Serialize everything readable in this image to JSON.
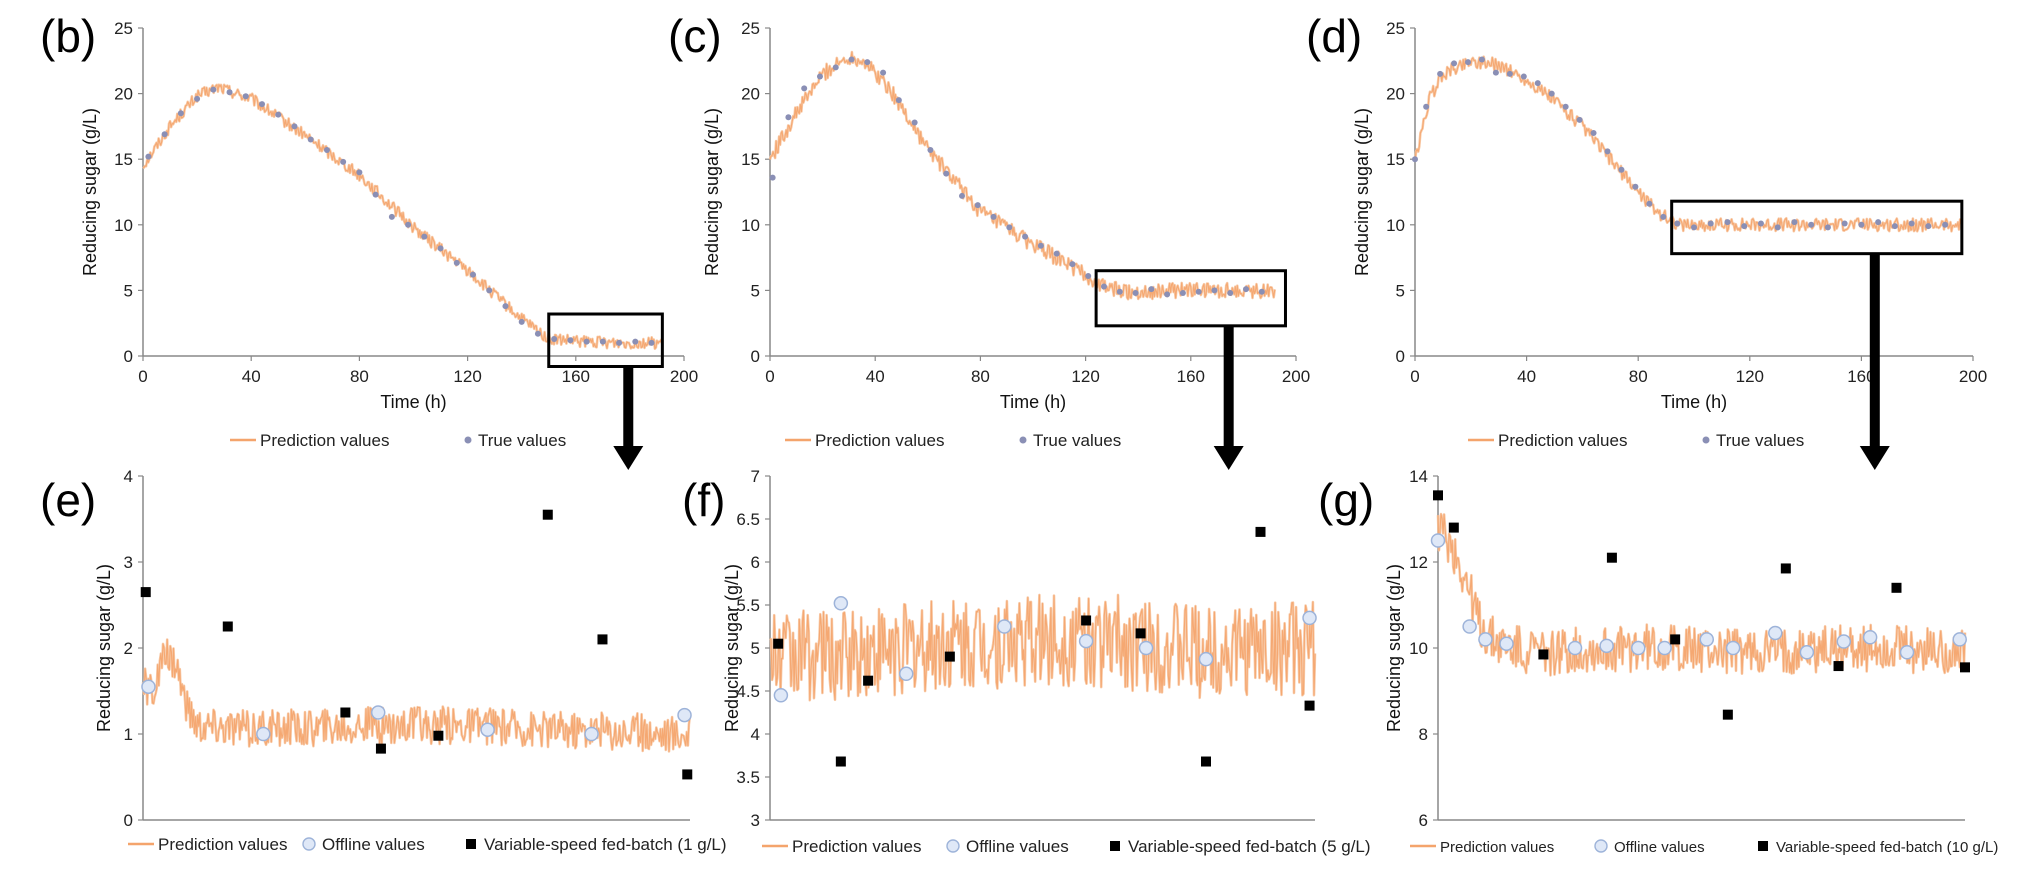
{
  "colors": {
    "prediction": "#f4a46c",
    "prediction_light": "#f7c7a2",
    "true_values": "#8a8fb5",
    "offline_fill": "#dfe8f7",
    "offline_stroke": "#9db3d9",
    "feed": "#000000",
    "axis": "#888888",
    "box": "#000000"
  },
  "chart_data": [
    {
      "id": "b",
      "type": "line",
      "panel_letter": "(b)",
      "xlabel": "Time (h)",
      "ylabel": "Reducing sugar (g/L)",
      "xlim": [
        0,
        200
      ],
      "ylim": [
        0,
        25
      ],
      "x_ticks": [
        "0",
        "40",
        "80",
        "120",
        "160",
        "200"
      ],
      "y_ticks": [
        "0",
        "5",
        "10",
        "15",
        "20",
        "25"
      ],
      "grid": false,
      "legend": [
        "Prediction values",
        "True values"
      ],
      "legend_position": "bottom",
      "highlight_box": {
        "x": [
          150,
          192
        ],
        "y": [
          -0.8,
          3.2
        ]
      },
      "series": [
        {
          "name": "Prediction values",
          "style": "line",
          "x": [
            0,
            10,
            20,
            28,
            40,
            60,
            80,
            100,
            120,
            140,
            150,
            160,
            180,
            192
          ],
          "values": [
            14.5,
            17.5,
            19.8,
            20.5,
            19.6,
            16.8,
            13.8,
            9.8,
            6.5,
            2.8,
            1.3,
            1.1,
            1.0,
            1.0
          ],
          "noise": 0.45
        },
        {
          "name": "True values",
          "style": "markers",
          "x": [
            2,
            8,
            14,
            20,
            26,
            32,
            38,
            44,
            50,
            56,
            62,
            68,
            74,
            80,
            86,
            92,
            98,
            104,
            110,
            116,
            122,
            128,
            134,
            140,
            146,
            152,
            158,
            164,
            170,
            176,
            182,
            188
          ],
          "values": [
            15.2,
            16.9,
            18.5,
            19.6,
            20.3,
            20.1,
            19.8,
            19.2,
            18.4,
            17.5,
            16.5,
            15.7,
            14.8,
            14.0,
            12.3,
            10.6,
            10.0,
            9.1,
            8.2,
            7.1,
            6.2,
            5.0,
            3.8,
            2.6,
            1.7,
            1.3,
            1.2,
            1.1,
            1.1,
            1.0,
            1.1,
            1.0
          ]
        }
      ]
    },
    {
      "id": "c",
      "type": "line",
      "panel_letter": "(c)",
      "xlabel": "Time (h)",
      "ylabel": "Reducing sugar (g/L)",
      "xlim": [
        0,
        200
      ],
      "ylim": [
        0,
        25
      ],
      "x_ticks": [
        "0",
        "40",
        "80",
        "120",
        "160",
        "200"
      ],
      "y_ticks": [
        "0",
        "5",
        "10",
        "15",
        "20",
        "25"
      ],
      "grid": false,
      "legend": [
        "Prediction values",
        "True values"
      ],
      "legend_position": "bottom",
      "highlight_box": {
        "x": [
          124,
          196
        ],
        "y": [
          2.3,
          6.5
        ]
      },
      "series": [
        {
          "name": "Prediction values",
          "style": "line",
          "x": [
            0,
            10,
            20,
            30,
            35,
            45,
            60,
            80,
            100,
            115,
            125,
            135,
            160,
            192
          ],
          "values": [
            15.0,
            18.5,
            21.5,
            22.8,
            22.6,
            20.5,
            15.8,
            11.0,
            8.5,
            6.8,
            5.4,
            4.9,
            5.0,
            5.0
          ],
          "noise": 0.6
        },
        {
          "name": "True values",
          "style": "markers",
          "x": [
            1,
            7,
            13,
            19,
            25,
            31,
            37,
            43,
            49,
            55,
            61,
            67,
            73,
            79,
            85,
            91,
            97,
            103,
            109,
            115,
            121,
            127,
            133,
            139,
            145,
            151,
            157,
            163,
            169,
            175,
            181,
            187
          ],
          "values": [
            13.6,
            18.2,
            20.4,
            21.3,
            22.0,
            22.6,
            22.4,
            21.6,
            19.5,
            17.8,
            15.7,
            13.9,
            12.2,
            11.5,
            10.6,
            9.8,
            9.1,
            8.4,
            7.8,
            7.0,
            6.1,
            5.3,
            4.9,
            4.8,
            5.1,
            4.7,
            4.8,
            4.9,
            5.0,
            4.8,
            5.1,
            4.9
          ]
        }
      ]
    },
    {
      "id": "d",
      "type": "line",
      "panel_letter": "(d)",
      "xlabel": "Time (h)",
      "ylabel": "Reducing sugar (g/L)",
      "xlim": [
        0,
        200
      ],
      "ylim": [
        0,
        25
      ],
      "x_ticks": [
        "0",
        "40",
        "80",
        "120",
        "160",
        "200"
      ],
      "y_ticks": [
        "0",
        "5",
        "10",
        "15",
        "20",
        "25"
      ],
      "grid": false,
      "legend": [
        "Prediction values",
        "True values"
      ],
      "legend_position": "bottom",
      "highlight_box": {
        "x": [
          92,
          196
        ],
        "y": [
          7.8,
          11.8
        ]
      },
      "series": [
        {
          "name": "Prediction values",
          "style": "line",
          "x": [
            0,
            5,
            10,
            20,
            30,
            40,
            50,
            60,
            70,
            80,
            88,
            95,
            130,
            196
          ],
          "values": [
            14.8,
            19.5,
            21.5,
            22.5,
            22.2,
            21.0,
            19.5,
            17.5,
            15.0,
            12.5,
            10.8,
            10.0,
            10.0,
            10.0
          ],
          "noise": 0.5
        },
        {
          "name": "True values",
          "style": "markers",
          "x": [
            0,
            4,
            9,
            14,
            19,
            24,
            29,
            34,
            39,
            44,
            49,
            54,
            59,
            64,
            69,
            74,
            79,
            84,
            89,
            94,
            100,
            106,
            112,
            118,
            124,
            130,
            136,
            142,
            148,
            154,
            160,
            166,
            172,
            178,
            184,
            190
          ],
          "values": [
            15.0,
            19.0,
            21.5,
            22.3,
            22.4,
            22.6,
            21.6,
            21.5,
            21.3,
            20.8,
            20.0,
            19.0,
            18.0,
            17.0,
            15.6,
            14.2,
            12.9,
            11.6,
            10.6,
            10.1,
            9.8,
            10.1,
            10.2,
            9.9,
            10.1,
            9.8,
            10.2,
            10.0,
            9.8,
            10.1,
            10.0,
            10.2,
            9.9,
            10.1,
            9.9,
            10.0
          ]
        }
      ]
    },
    {
      "id": "e",
      "type": "line",
      "panel_letter": "(e)",
      "xlabel": "",
      "ylabel": "Reducing sugar (g/L)",
      "xlim": [
        0,
        100
      ],
      "ylim": [
        0,
        4
      ],
      "x_ticks": [],
      "y_ticks": [
        "0",
        "1",
        "2",
        "3",
        "4"
      ],
      "grid": false,
      "legend": [
        "Prediction values",
        "Offline values",
        "Variable-speed fed-batch (1 g/L)"
      ],
      "legend_position": "bottom",
      "series": [
        {
          "name": "Prediction values",
          "style": "line",
          "x": [
            0,
            2,
            4,
            6,
            8,
            10,
            20,
            40,
            60,
            80,
            100
          ],
          "values": [
            1.55,
            1.5,
            1.9,
            1.85,
            1.3,
            1.1,
            1.05,
            1.1,
            1.1,
            1.05,
            1.0
          ],
          "noise": 0.22
        },
        {
          "name": "Offline values",
          "style": "circles",
          "x": [
            1,
            22,
            43,
            63,
            82,
            99
          ],
          "values": [
            1.55,
            1.0,
            1.25,
            1.05,
            1.0,
            1.22
          ]
        },
        {
          "name": "Variable-speed fed-batch (1 g/L)",
          "style": "squares",
          "x": [
            0.5,
            15.5,
            37,
            43.5,
            54,
            74,
            84,
            99.5
          ],
          "values": [
            2.65,
            2.25,
            1.25,
            0.83,
            0.98,
            3.55,
            2.1,
            0.53
          ]
        }
      ]
    },
    {
      "id": "f",
      "type": "line",
      "panel_letter": "(f)",
      "xlabel": "",
      "ylabel": "Reducing sugar (g/L)",
      "xlim": [
        0,
        100
      ],
      "ylim": [
        3,
        7
      ],
      "x_ticks": [],
      "y_ticks": [
        "3",
        "3.5",
        "4",
        "4.5",
        "5",
        "5.5",
        "6",
        "6.5",
        "7"
      ],
      "grid": false,
      "legend": [
        "Prediction values",
        "Offline values",
        "Variable-speed fed-batch (5 g/L)"
      ],
      "legend_position": "bottom",
      "series": [
        {
          "name": "Prediction values",
          "style": "line",
          "x": [
            0,
            20,
            40,
            60,
            80,
            100
          ],
          "values": [
            4.9,
            4.95,
            5.05,
            5.1,
            4.95,
            5.0
          ],
          "noise": 0.55
        },
        {
          "name": "Offline values",
          "style": "circles",
          "x": [
            2,
            13,
            25,
            43,
            58,
            69,
            80,
            99
          ],
          "values": [
            4.45,
            5.52,
            4.7,
            5.25,
            5.08,
            5.0,
            4.87,
            5.35
          ]
        },
        {
          "name": "Variable-speed fed-batch (5 g/L)",
          "style": "squares",
          "x": [
            1.5,
            13,
            18,
            33,
            58,
            68,
            80,
            90,
            99
          ],
          "values": [
            5.05,
            3.68,
            4.62,
            4.9,
            5.32,
            5.17,
            3.68,
            6.35,
            4.33
          ]
        }
      ]
    },
    {
      "id": "g",
      "type": "line",
      "panel_letter": "(g)",
      "xlabel": "",
      "ylabel": "Reducing sugar (g/L)",
      "xlim": [
        0,
        100
      ],
      "ylim": [
        6,
        14
      ],
      "x_ticks": [],
      "y_ticks": [
        "6",
        "8",
        "10",
        "12",
        "14"
      ],
      "grid": false,
      "legend": [
        "Prediction values",
        "Offline values",
        "Variable-speed fed-batch (10 g/L)"
      ],
      "legend_position": "bottom",
      "series": [
        {
          "name": "Prediction values",
          "style": "line",
          "x": [
            0,
            2,
            4,
            6,
            8,
            10,
            14,
            20,
            40,
            60,
            80,
            100
          ],
          "values": [
            12.8,
            12.5,
            12.0,
            11.3,
            10.5,
            10.2,
            10.0,
            9.9,
            10.0,
            9.9,
            10.0,
            9.9
          ],
          "noise": 0.55
        },
        {
          "name": "Offline values",
          "style": "circles",
          "x": [
            0,
            6,
            9,
            13,
            26,
            32,
            38,
            43,
            51,
            56,
            64,
            70,
            77,
            82,
            89,
            99
          ],
          "values": [
            12.5,
            10.5,
            10.2,
            10.1,
            10.0,
            10.05,
            10.0,
            10.0,
            10.2,
            10.0,
            10.35,
            9.9,
            10.15,
            10.25,
            9.9,
            10.2
          ]
        },
        {
          "name": "Variable-speed fed-batch (10 g/L)",
          "style": "squares",
          "x": [
            0,
            3,
            20,
            33,
            45,
            55,
            66,
            76,
            87,
            100
          ],
          "values": [
            13.55,
            12.8,
            9.85,
            12.1,
            10.2,
            8.45,
            11.85,
            9.58,
            11.4,
            9.55
          ]
        }
      ]
    }
  ]
}
